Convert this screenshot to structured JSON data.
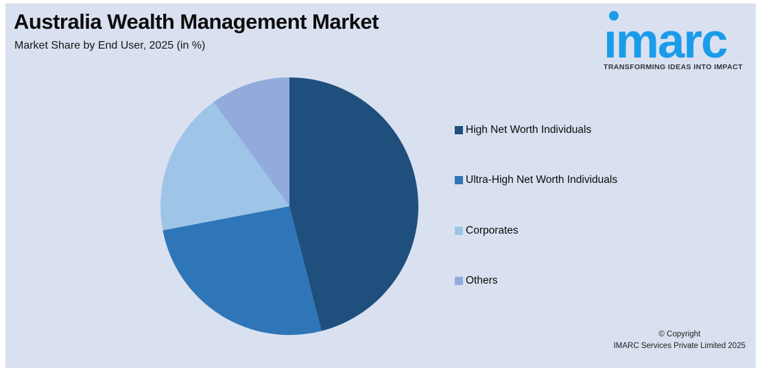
{
  "header": {
    "title": "Australia Wealth Management Market",
    "subtitle": "Market Share by End User, 2025 (in %)"
  },
  "logo": {
    "brand": "imarc",
    "tagline": "TRANSFORMING IDEAS INTO IMPACT",
    "brand_color": "#1B9CEA",
    "tagline_color": "#33343C"
  },
  "chart_data": {
    "type": "pie",
    "title": "Australia Wealth Management Market",
    "subtitle": "Market Share by End User, 2025 (in %)",
    "start_angle_deg_from_12_oclock": 0,
    "direction": "clockwise",
    "legend_position": "right",
    "data_labels": false,
    "slices": [
      {
        "label": "High Net Worth Individuals",
        "value": 46,
        "color": "#1F4F7D"
      },
      {
        "label": "Ultra-High Net Worth Individuals",
        "value": 26,
        "color": "#2F76B8"
      },
      {
        "label": "Corporates",
        "value": 18,
        "color": "#9EC4E8"
      },
      {
        "label": "Others",
        "value": 10,
        "color": "#92AADC"
      }
    ]
  },
  "footer": {
    "line1": "© Copyright",
    "line2": "IMARC Services Private Limited 2025"
  },
  "colors": {
    "panel_background": "#D9E1F0",
    "page_border": "#FFFFFF"
  }
}
